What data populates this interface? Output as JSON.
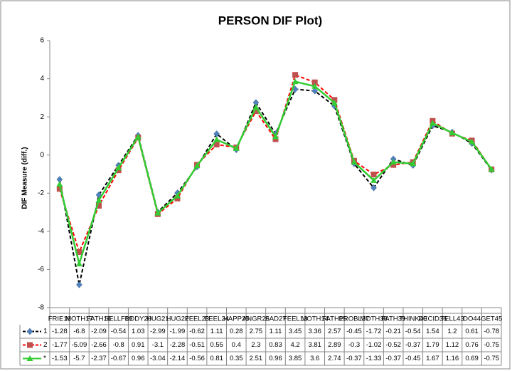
{
  "chart_data": {
    "type": "line",
    "title": "PERSON DIF Plot)",
    "y_label": "DIF Measure (diff.)",
    "categories": [
      "FRIE16",
      "MOTH17",
      "FATH18",
      "SELLF19",
      "BODY20",
      "HUG21",
      "HUG22",
      "FEEL23",
      "FEEL24",
      "HAPP25",
      "ANGR26",
      "SAD27",
      "FEEL13",
      "MOTH14",
      "FATH15",
      "PROBL37",
      "MOTH38",
      "FATH39",
      "THINK40",
      "DECID36",
      "TELL43",
      "DO44",
      "GET45"
    ],
    "series": [
      {
        "name": "1",
        "color": "#000000",
        "dash": true,
        "marker": "diamond",
        "marker_color": "#4f81bd",
        "values": [
          -1.28,
          -6.8,
          -2.09,
          -0.54,
          1.03,
          -2.99,
          -1.99,
          -0.62,
          1.11,
          0.28,
          2.75,
          1.11,
          3.45,
          3.36,
          2.57,
          -0.45,
          -1.72,
          -0.21,
          -0.54,
          1.54,
          1.2,
          0.61,
          -0.78
        ]
      },
      {
        "name": "2",
        "color": "#ff0000",
        "dash": true,
        "marker": "square",
        "marker_color": "#c0504d",
        "values": [
          -1.77,
          -5.09,
          -2.66,
          -0.8,
          0.91,
          -3.1,
          -2.28,
          -0.51,
          0.55,
          0.4,
          2.3,
          0.83,
          4.2,
          3.81,
          2.89,
          -0.3,
          -1.02,
          -0.52,
          -0.37,
          1.79,
          1.12,
          0.76,
          -0.75
        ]
      },
      {
        "name": "*",
        "color": "#33cc33",
        "dash": false,
        "marker": "triangle",
        "marker_color": "#33cc33",
        "values": [
          -1.53,
          -5.7,
          -2.37,
          -0.67,
          0.96,
          -3.04,
          -2.14,
          -0.56,
          0.81,
          0.35,
          2.51,
          0.96,
          3.85,
          3.6,
          2.74,
          -0.37,
          -1.33,
          -0.37,
          -0.45,
          1.67,
          1.16,
          0.69,
          -0.75
        ]
      }
    ],
    "ylim": [
      -8,
      6
    ],
    "yticks": [
      -8,
      -6,
      -4,
      -2,
      0,
      2,
      4,
      6
    ],
    "grid": false
  }
}
